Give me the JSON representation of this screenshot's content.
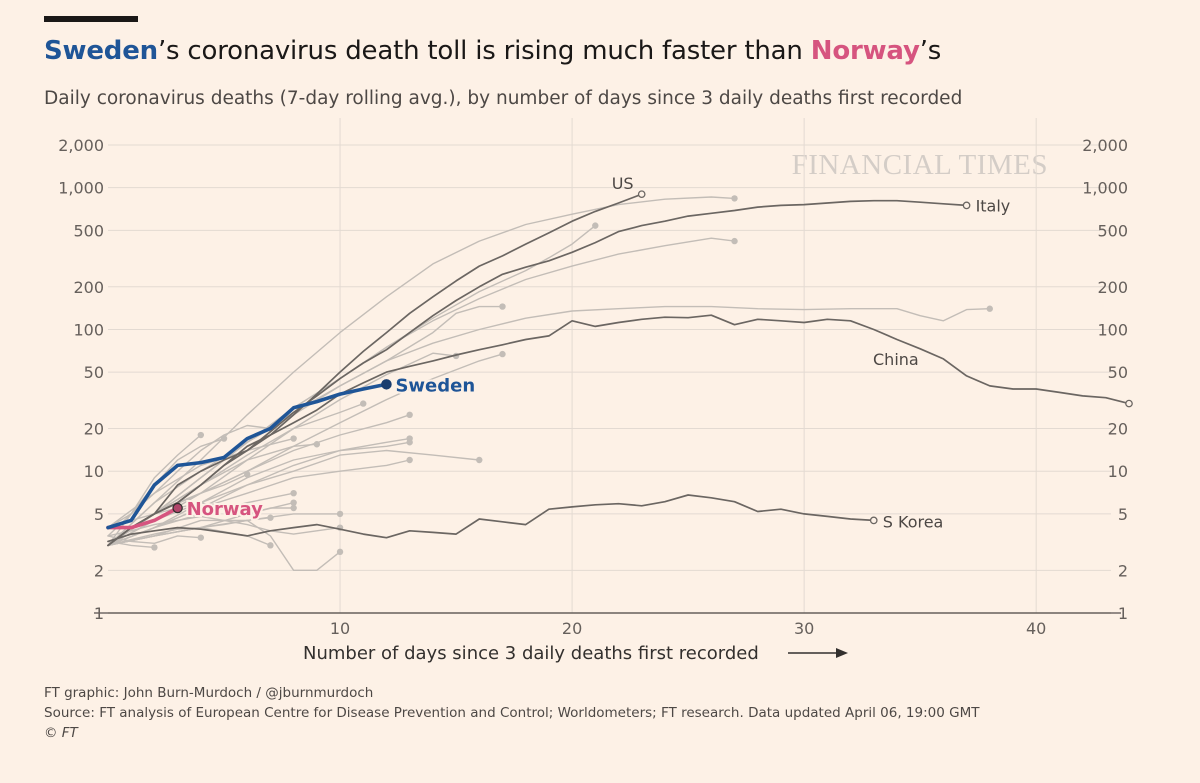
{
  "header": {
    "title_part1": "Sweden",
    "title_part2": "’s coronavirus death toll is rising much faster than ",
    "title_part3": "Norway",
    "title_part4": "’s",
    "subtitle": "Daily coronavirus deaths (7-day rolling avg.), by number of days since 3 daily deaths first recorded"
  },
  "watermark": "FINANCIAL TIMES",
  "footer": {
    "credit": "FT graphic: John Burn-Murdoch / @jburnmurdoch",
    "source": "Source: FT analysis of European Centre for Disease Prevention and Control; Worldometers; FT research. Data updated April 06, 19:00 GMT",
    "copyright": "© FT"
  },
  "chart_data": {
    "type": "line",
    "xlabel": "Number of days since 3 daily deaths first recorded",
    "xlim": [
      0,
      44
    ],
    "ylim": [
      1,
      2000
    ],
    "yscale": "log",
    "xticks": [
      10,
      20,
      30,
      40
    ],
    "xtick_labels": [
      "10",
      "20",
      "30",
      "40"
    ],
    "yticks": [
      1,
      2,
      5,
      10,
      20,
      50,
      100,
      200,
      500,
      1000,
      2000
    ],
    "ytick_labels": [
      "1",
      "2",
      "5",
      "10",
      "20",
      "50",
      "100",
      "200",
      "500",
      "1,000",
      "2,000"
    ],
    "grid": true,
    "colors": {
      "highlight_sweden": "#1f5597",
      "highlight_norway": "#d6547f",
      "labelled": "#6b6662",
      "background_series": "#c3bdb7"
    },
    "series": [
      {
        "name": "Sweden",
        "style": "sweden",
        "label": "Sweden",
        "x": [
          0,
          1,
          2,
          3,
          4,
          5,
          6,
          7,
          8,
          9,
          10,
          11,
          12
        ],
        "y": [
          4,
          4.5,
          8,
          11,
          11.5,
          12.5,
          17,
          20,
          28,
          31,
          35,
          38,
          41
        ]
      },
      {
        "name": "Norway",
        "style": "norway",
        "label": "Norway",
        "x": [
          0,
          1,
          2,
          3
        ],
        "y": [
          4,
          4,
          4.5,
          5.5
        ]
      },
      {
        "name": "US",
        "style": "dark",
        "label": "US",
        "x": [
          0,
          1,
          2,
          3,
          4,
          5,
          6,
          7,
          8,
          9,
          10,
          11,
          12,
          13,
          14,
          15,
          16,
          17,
          18,
          19,
          20,
          21,
          22,
          23
        ],
        "y": [
          3,
          4,
          5,
          8,
          10,
          12,
          14,
          18,
          25,
          35,
          50,
          70,
          95,
          130,
          170,
          220,
          280,
          330,
          400,
          480,
          580,
          680,
          780,
          900
        ]
      },
      {
        "name": "Italy",
        "style": "dark",
        "label": "Italy",
        "x": [
          0,
          1,
          2,
          3,
          4,
          5,
          6,
          7,
          8,
          9,
          10,
          11,
          12,
          13,
          14,
          15,
          16,
          17,
          18,
          19,
          20,
          21,
          22,
          23,
          24,
          25,
          26,
          27,
          28,
          29,
          30,
          31,
          32,
          33,
          34,
          35,
          36,
          37
        ],
        "y": [
          3,
          4,
          5,
          6,
          8,
          11,
          14,
          19,
          26,
          34,
          45,
          58,
          72,
          95,
          125,
          160,
          200,
          245,
          275,
          305,
          350,
          410,
          490,
          540,
          580,
          630,
          660,
          690,
          730,
          750,
          760,
          780,
          800,
          810,
          810,
          790,
          770,
          750
        ]
      },
      {
        "name": "China",
        "style": "dark",
        "label": "China",
        "x": [
          0,
          1,
          2,
          3,
          4,
          5,
          6,
          7,
          8,
          9,
          10,
          11,
          12,
          13,
          14,
          15,
          16,
          17,
          18,
          19,
          20,
          21,
          22,
          23,
          24,
          25,
          26,
          27,
          28,
          29,
          30,
          31,
          32,
          33,
          34,
          35,
          36,
          37,
          38,
          39,
          40,
          41,
          42,
          43,
          44
        ],
        "y": [
          3,
          4,
          5,
          6,
          8,
          11,
          15,
          18,
          22,
          27,
          35,
          42,
          50,
          55,
          60,
          66,
          72,
          78,
          85,
          90,
          115,
          105,
          112,
          118,
          122,
          121,
          126,
          108,
          118,
          115,
          112,
          118,
          115,
          100,
          85,
          73,
          62,
          47,
          40,
          38,
          38,
          36,
          34,
          33,
          30
        ]
      },
      {
        "name": "S Korea",
        "style": "dark",
        "label": "S Korea",
        "x": [
          0,
          1,
          2,
          3,
          4,
          5,
          6,
          7,
          8,
          9,
          10,
          11,
          12,
          13,
          14,
          15,
          16,
          17,
          18,
          19,
          20,
          21,
          22,
          23,
          24,
          25,
          26,
          27,
          28,
          29,
          30,
          31,
          32,
          33
        ],
        "y": [
          3.2,
          3.6,
          3.8,
          4.0,
          3.9,
          3.7,
          3.5,
          3.8,
          4.0,
          4.2,
          3.9,
          3.6,
          3.4,
          3.8,
          3.7,
          3.6,
          4.6,
          4.4,
          4.2,
          5.4,
          5.6,
          5.8,
          5.9,
          5.7,
          6.1,
          6.8,
          6.5,
          6.1,
          5.2,
          5.4,
          5.0,
          4.8,
          4.6,
          4.5
        ]
      },
      {
        "name": "",
        "style": "grey",
        "x": [
          0,
          2,
          4,
          6,
          8,
          10,
          12,
          14,
          16,
          18,
          20,
          22,
          24,
          26,
          27
        ],
        "y": [
          3,
          6,
          12,
          25,
          50,
          95,
          170,
          290,
          420,
          550,
          650,
          760,
          830,
          860,
          840
        ]
      },
      {
        "name": "",
        "style": "grey",
        "x": [
          0,
          2,
          4,
          6,
          8,
          10,
          12,
          14,
          16,
          18,
          19,
          20,
          21
        ],
        "y": [
          3,
          5,
          9,
          16,
          28,
          45,
          75,
          120,
          185,
          260,
          320,
          400,
          540
        ]
      },
      {
        "name": "",
        "style": "grey",
        "x": [
          0,
          2,
          4,
          6,
          8,
          10,
          12,
          14,
          16,
          18,
          20,
          22,
          24,
          26,
          27
        ],
        "y": [
          3,
          5,
          9,
          16,
          28,
          45,
          75,
          115,
          165,
          225,
          280,
          340,
          390,
          440,
          420
        ]
      },
      {
        "name": "",
        "style": "grey",
        "x": [
          0,
          2,
          4,
          6,
          8,
          10,
          12,
          14,
          15,
          16,
          17
        ],
        "y": [
          3,
          6,
          10,
          16,
          25,
          40,
          60,
          95,
          130,
          145,
          145
        ]
      },
      {
        "name": "",
        "style": "grey",
        "x": [
          0,
          2,
          4,
          6,
          8,
          10,
          12,
          14,
          16,
          18,
          20,
          22,
          24,
          26,
          28,
          30,
          32,
          34,
          35,
          36,
          37,
          38
        ],
        "y": [
          3,
          5,
          9,
          16,
          26,
          40,
          60,
          80,
          100,
          120,
          135,
          140,
          145,
          145,
          140,
          138,
          140,
          140,
          125,
          115,
          138,
          140
        ]
      },
      {
        "name": "",
        "style": "grey",
        "x": [
          0,
          2,
          4,
          6,
          8,
          10,
          12,
          14,
          15
        ],
        "y": [
          3,
          5,
          7,
          12,
          20,
          32,
          48,
          68,
          65
        ]
      },
      {
        "name": "",
        "style": "grey",
        "x": [
          0,
          2,
          4,
          6,
          8,
          10,
          12,
          14,
          16,
          17
        ],
        "y": [
          3,
          4.5,
          7,
          10,
          15,
          22,
          32,
          45,
          60,
          67
        ]
      },
      {
        "name": "",
        "style": "grey",
        "x": [
          0,
          2,
          4,
          6,
          8,
          10,
          11
        ],
        "y": [
          3,
          5,
          8,
          13,
          20,
          26,
          30
        ]
      },
      {
        "name": "",
        "style": "grey",
        "x": [
          0,
          2,
          4,
          6,
          8,
          10,
          12,
          13
        ],
        "y": [
          3,
          4.5,
          7,
          10,
          14,
          18,
          22,
          25
        ]
      },
      {
        "name": "",
        "style": "grey",
        "x": [
          0,
          2,
          4,
          6,
          8,
          10,
          12,
          13
        ],
        "y": [
          3,
          4,
          5.5,
          8,
          11,
          14,
          16,
          17
        ]
      },
      {
        "name": "",
        "style": "grey",
        "x": [
          0,
          2,
          4,
          6,
          8,
          10,
          12,
          13
        ],
        "y": [
          3,
          4.5,
          6,
          9,
          12,
          14,
          15,
          16
        ]
      },
      {
        "name": "",
        "style": "grey",
        "x": [
          0,
          2,
          4,
          6,
          8,
          10,
          12,
          14,
          16
        ],
        "y": [
          3,
          4,
          6,
          8,
          10,
          13,
          14,
          13,
          12
        ]
      },
      {
        "name": "",
        "style": "grey",
        "x": [
          0,
          2,
          4,
          6,
          8,
          9
        ],
        "y": [
          3,
          5,
          8,
          12,
          15,
          15.5
        ]
      },
      {
        "name": "",
        "style": "grey",
        "x": [
          0,
          2,
          4,
          6,
          8
        ],
        "y": [
          4,
          7,
          11,
          14,
          17
        ]
      },
      {
        "name": "",
        "style": "grey",
        "x": [
          0,
          2,
          4,
          6,
          8,
          10,
          12,
          13
        ],
        "y": [
          3,
          4,
          5.5,
          7,
          9,
          10,
          11,
          12
        ]
      },
      {
        "name": "",
        "style": "grey",
        "x": [
          0,
          1,
          2,
          3,
          4,
          5,
          6,
          7
        ],
        "y": [
          4,
          5,
          7,
          10,
          14,
          18,
          21,
          20
        ]
      },
      {
        "name": "",
        "style": "grey",
        "x": [
          0,
          1,
          2,
          3,
          4,
          5
        ],
        "y": [
          3.5,
          5,
          8,
          12,
          15,
          17
        ]
      },
      {
        "name": "",
        "style": "grey",
        "x": [
          0,
          1,
          2,
          3,
          4
        ],
        "y": [
          3,
          5,
          9,
          13,
          18
        ]
      },
      {
        "name": "",
        "style": "grey",
        "x": [
          0,
          1,
          2,
          3,
          4,
          5,
          6
        ],
        "y": [
          3,
          4,
          5,
          6,
          7,
          8,
          9.5
        ]
      },
      {
        "name": "",
        "style": "grey",
        "x": [
          0,
          2,
          4,
          6,
          8
        ],
        "y": [
          3,
          4,
          5,
          6,
          7
        ]
      },
      {
        "name": "",
        "style": "grey",
        "x": [
          0,
          2,
          4,
          6,
          8
        ],
        "y": [
          3,
          3.5,
          4,
          5,
          6
        ]
      },
      {
        "name": "",
        "style": "grey",
        "x": [
          0,
          2,
          4,
          6,
          8,
          10
        ],
        "y": [
          3,
          3.5,
          4,
          4.5,
          5,
          5
        ]
      },
      {
        "name": "",
        "style": "grey",
        "x": [
          0,
          1,
          2,
          3,
          4,
          5,
          6,
          7
        ],
        "y": [
          3,
          3.3,
          3.6,
          3.9,
          4,
          4.2,
          4.5,
          4.7
        ]
      },
      {
        "name": "",
        "style": "grey",
        "x": [
          0,
          2,
          4,
          6,
          7,
          8,
          9,
          10
        ],
        "y": [
          3,
          3.5,
          4.5,
          4.5,
          3.5,
          2,
          2,
          2.7
        ]
      },
      {
        "name": "",
        "style": "grey",
        "x": [
          0,
          2,
          4,
          6,
          7
        ],
        "y": [
          3,
          3.5,
          4,
          3.5,
          3
        ]
      },
      {
        "name": "",
        "style": "grey",
        "x": [
          0,
          1,
          2,
          3,
          4
        ],
        "y": [
          3.5,
          3.2,
          3.1,
          3.5,
          3.4
        ]
      },
      {
        "name": "",
        "style": "grey",
        "x": [
          0,
          1,
          2
        ],
        "y": [
          3.2,
          3.0,
          2.9
        ]
      },
      {
        "name": "",
        "style": "grey",
        "x": [
          0,
          1,
          2,
          3,
          4,
          5,
          6,
          7,
          8
        ],
        "y": [
          4,
          4.5,
          5,
          5.5,
          6,
          5.5,
          5,
          5.5,
          5.5
        ]
      },
      {
        "name": "",
        "style": "grey",
        "x": [
          0,
          1,
          2,
          3,
          4,
          5,
          6,
          7,
          8,
          9,
          10
        ],
        "y": [
          3.5,
          3.8,
          4.2,
          4.5,
          4.8,
          4.5,
          4.2,
          3.8,
          3.6,
          3.8,
          4.0
        ]
      }
    ]
  }
}
